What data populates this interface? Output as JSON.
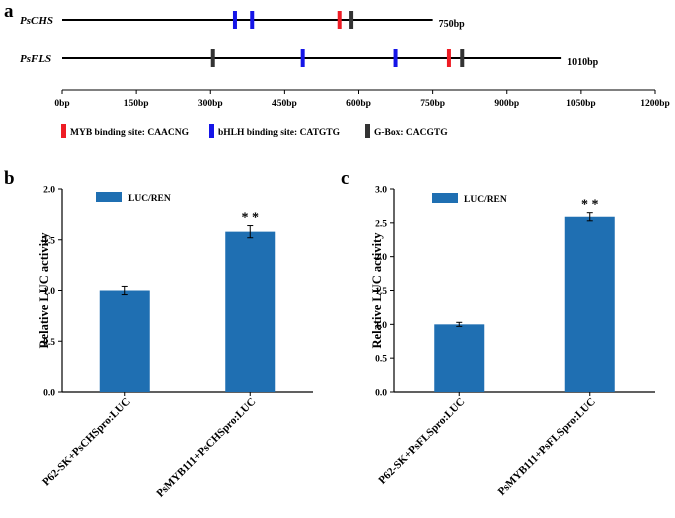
{
  "panels": {
    "a": {
      "letter": "a",
      "genes": [
        {
          "name": "PsCHS",
          "length_bp": 750,
          "length_label": "750bp",
          "sites": [
            {
              "pos_bp": 350,
              "type": "bHLH"
            },
            {
              "pos_bp": 385,
              "type": "bHLH"
            },
            {
              "pos_bp": 562,
              "type": "MYB"
            },
            {
              "pos_bp": 585,
              "type": "G-Box"
            }
          ]
        },
        {
          "name": "PsFLS",
          "length_bp": 1010,
          "length_label": "1010bp",
          "sites": [
            {
              "pos_bp": 305,
              "type": "G-Box"
            },
            {
              "pos_bp": 487,
              "type": "bHLH"
            },
            {
              "pos_bp": 675,
              "type": "bHLH"
            },
            {
              "pos_bp": 783,
              "type": "MYB"
            },
            {
              "pos_bp": 810,
              "type": "G-Box"
            }
          ]
        }
      ],
      "axis": {
        "max_bp": 1200,
        "ticks": [
          "0bp",
          "150bp",
          "300bp",
          "450bp",
          "600bp",
          "750bp",
          "900bp",
          "1050bp",
          "1200bp"
        ]
      },
      "legend": [
        {
          "type": "MYB",
          "label": "MYB binding site: CAACNG",
          "color": "#ee1c24"
        },
        {
          "type": "bHLH",
          "label": "bHLH binding site: CATGTG",
          "color": "#1515e8"
        },
        {
          "type": "G-Box",
          "label": "G-Box: CACGTG",
          "color": "#333333"
        }
      ]
    },
    "b": {
      "letter": "b"
    },
    "c": {
      "letter": "c"
    }
  },
  "chart_data": [
    {
      "type": "bar",
      "panel": "b",
      "categories": [
        "P62-SK+PsCHSpro:LUC",
        "PsMYB111+PsCHSpro:LUC"
      ],
      "series": [
        {
          "name": "LUC/REN",
          "values": [
            1.0,
            1.58
          ],
          "errors": [
            0.04,
            0.06
          ],
          "color": "#1f6fb2"
        }
      ],
      "significance": [
        "",
        "* *"
      ],
      "ylabel": "Relative LUC activity",
      "ylim": [
        0,
        2.0
      ],
      "yticks": [
        "0.0",
        "0.5",
        "1.0",
        "1.5",
        "2.0"
      ],
      "legend_position": "top-left"
    },
    {
      "type": "bar",
      "panel": "c",
      "categories": [
        "P62-SK+PsFLSpro:LUC",
        "PsMYB111+PsFLSpro:LUC"
      ],
      "series": [
        {
          "name": "LUC/REN",
          "values": [
            1.0,
            2.59
          ],
          "errors": [
            0.03,
            0.06
          ],
          "color": "#1f6fb2"
        }
      ],
      "significance": [
        "",
        "* *"
      ],
      "ylabel": "Relative LUC activity",
      "ylim": [
        0,
        3.0
      ],
      "yticks": [
        "0.0",
        "0.5",
        "1.0",
        "1.5",
        "2.0",
        "2.5",
        "3.0"
      ],
      "legend_position": "top-left"
    }
  ]
}
